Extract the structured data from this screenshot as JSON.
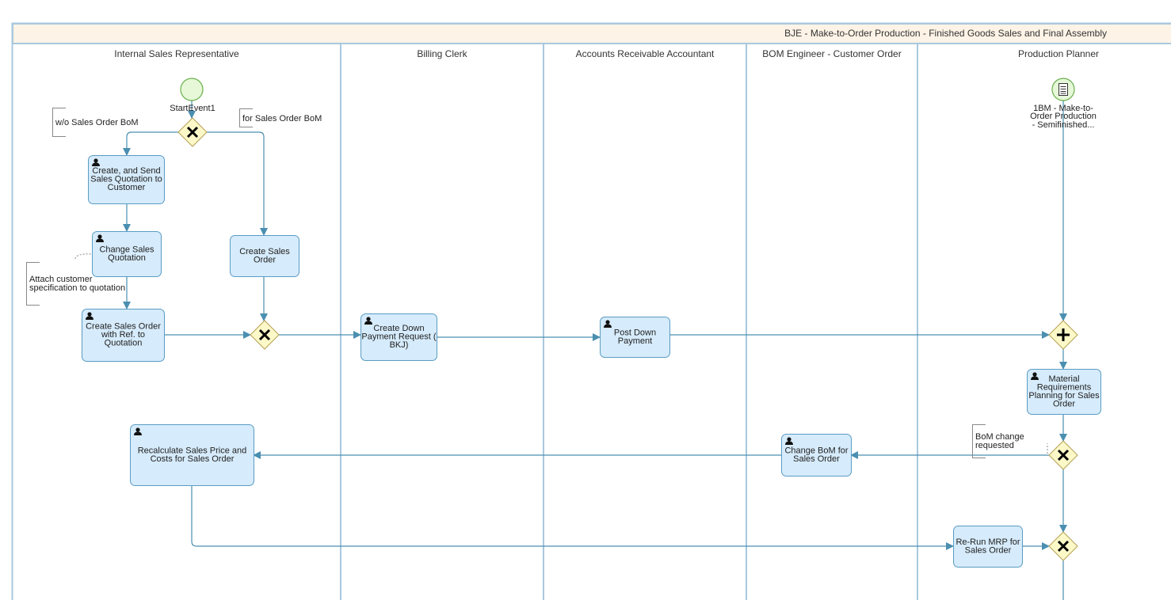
{
  "pool": {
    "title": "BJE - Make-to-Order Production - Finished Goods Sales and Final Assembly"
  },
  "lanes": [
    "Internal Sales Representative",
    "Billing Clerk",
    "Accounts Receivable Accountant",
    "BOM Engineer - Customer Order",
    "Production Planner"
  ],
  "events": {
    "start": {
      "label": "StartEvent1"
    },
    "intermediate": {
      "lines": [
        "1BM - Make-to-",
        "Order Production",
        "- Semifinished..."
      ],
      "icon": "document-icon"
    }
  },
  "annotations": {
    "without_bom": [
      "w/o Sales Order BoM"
    ],
    "for_bom": [
      "for Sales Order BoM"
    ],
    "attach": [
      "Attach customer",
      "specification to quotation"
    ],
    "bom_change": [
      "BoM change",
      "requested"
    ]
  },
  "tasks": {
    "t1": {
      "lines": [
        "Create, and Send",
        "Sales Quotation to",
        "Customer"
      ],
      "icon": "user-icon"
    },
    "t2": {
      "lines": [
        "Change Sales",
        "Quotation"
      ],
      "icon": "user-icon"
    },
    "t3": {
      "lines": [
        "Create Sales",
        "Order"
      ]
    },
    "t4": {
      "lines": [
        "Create Sales Order",
        "with Ref. to",
        "Quotation"
      ],
      "icon": "user-icon"
    },
    "t5": {
      "lines": [
        "Create Down",
        "Payment Request (",
        "BKJ)"
      ],
      "icon": "user-icon"
    },
    "t6": {
      "lines": [
        "Post Down",
        "Payment"
      ],
      "icon": "user-icon"
    },
    "t7": {
      "lines": [
        "Material",
        "Requirements",
        "Planning for Sales",
        "Order"
      ],
      "icon": "user-icon"
    },
    "t8": {
      "lines": [
        "Change BoM for",
        "Sales Order"
      ],
      "icon": "user-icon"
    },
    "t9": {
      "lines": [
        "Recalculate Sales Price and",
        "Costs for Sales Order"
      ],
      "icon": "user-icon"
    },
    "t10": {
      "lines": [
        "Re-Run MRP for",
        "Sales Order"
      ]
    }
  },
  "colors": {
    "task_fill": "#d6ebfb",
    "flow": "#4a8fb0",
    "gateway_fill": "#fdf8c8",
    "event_fill": "#e6f8d8",
    "header_fill": "#fdf3e6"
  }
}
